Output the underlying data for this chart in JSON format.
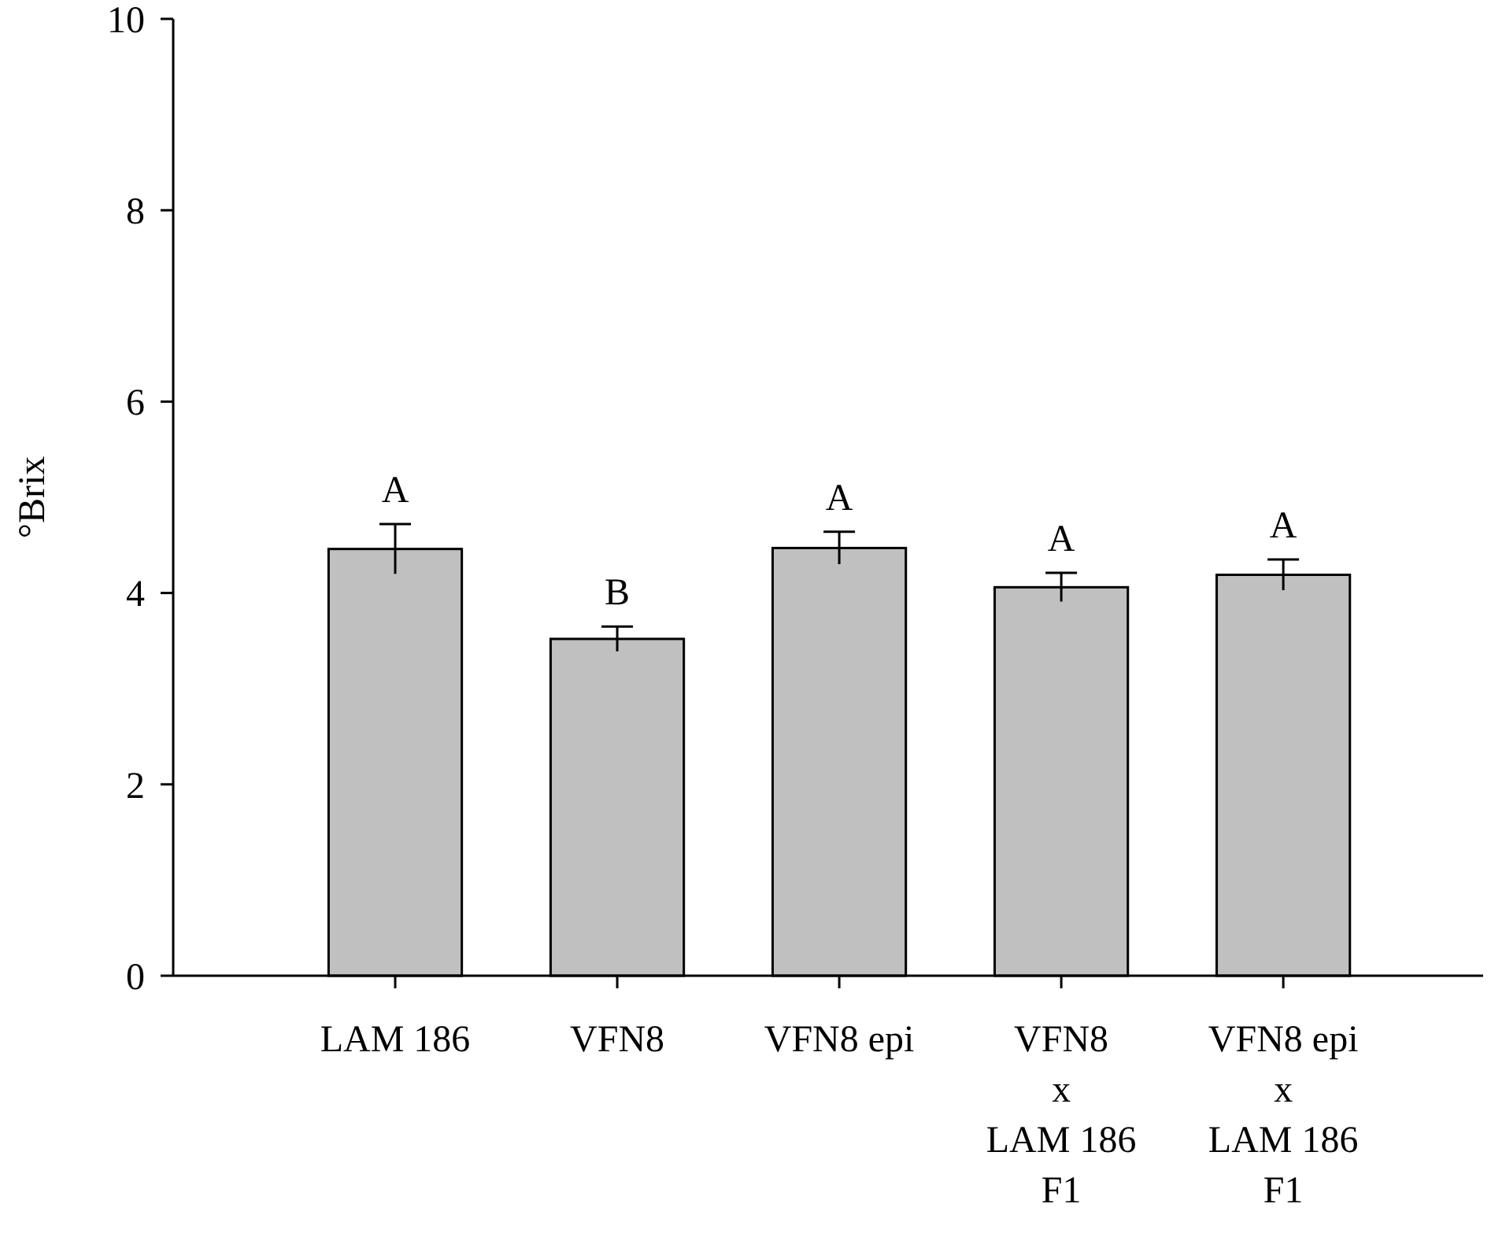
{
  "chart_data": {
    "type": "bar",
    "ylabel": "°Brix",
    "categories": [
      "LAM 186",
      "VFN8",
      "VFN8 epi",
      "VFN8\nx\nLAM 186\nF1",
      "VFN8 epi\nx\nLAM 186\nF1"
    ],
    "values": [
      4.46,
      3.52,
      4.47,
      4.06,
      4.19
    ],
    "errors": [
      0.26,
      0.13,
      0.17,
      0.15,
      0.16
    ],
    "color": "#c0c0c0",
    "ylim": [
      0,
      10
    ],
    "yticks": [
      0,
      2,
      4,
      6,
      8,
      10
    ],
    "grid": false,
    "annotations": [
      "A",
      "B",
      "A",
      "A",
      "A"
    ]
  }
}
